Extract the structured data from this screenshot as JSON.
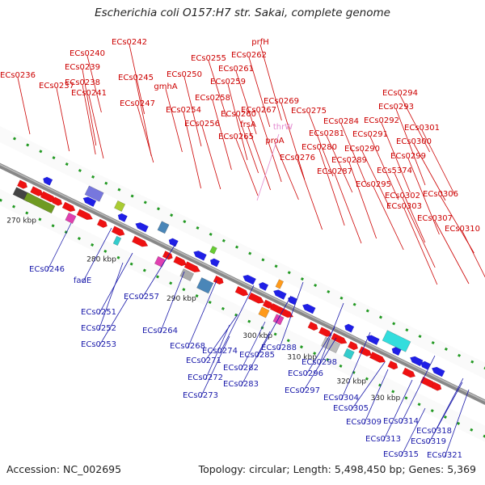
{
  "title": "Escherichia coli O157:H7 str. Sakai, complete genome",
  "footer": {
    "accession": "Accession: NC_002695",
    "summary": "Topology: circular; Length: 5,498,450 bp; Genes: 5,369"
  },
  "colors": {
    "forward_label": "#cc0000",
    "reverse_label": "#1a1aaa",
    "rna_label": "#e38ad0",
    "forward_gene": "#ee1111",
    "reverse_gene": "#1f1fe6",
    "backbone": "#888888",
    "tick": "#229922"
  },
  "scale_labels": [
    "270 kbp",
    "280 kbp",
    "290 kbp",
    "300 kbp",
    "310 kbp",
    "320 kbp",
    "330 kbp"
  ],
  "forward_labels": [
    "ECs0236",
    "ECs0237",
    "ECs0238",
    "ECs0239",
    "ECs0240",
    "ECs0241",
    "ECs0242",
    "ECs0245",
    "ECs0247",
    "gmhA",
    "ECs0250",
    "ECs0254",
    "ECs0255",
    "ECs0256",
    "ECs0258",
    "ECs0259",
    "ECs0260",
    "ECs0261",
    "ECs0262",
    "prfH",
    "ECs0265",
    "frsA",
    "ECs0267",
    "ECs0269",
    "proA",
    "ECs0275",
    "ECs0276",
    "ECs0280",
    "ECs0281",
    "ECs0284",
    "ECs0287",
    "ECs0289",
    "ECs0290",
    "ECs0291",
    "ECs0292",
    "ECs0293",
    "ECs0294",
    "ECs0295",
    "ECs5374",
    "ECs0299",
    "ECs0300",
    "ECs0301",
    "ECs0302",
    "ECs0303",
    "ECs0306",
    "ECs0307",
    "ECs0310"
  ],
  "rna_labels": [
    "thrW"
  ],
  "reverse_labels": [
    "ECs0246",
    "fadE",
    "ECs0251",
    "ECs0252",
    "ECs0253",
    "ECs0257",
    "ECs0264",
    "ECs0268",
    "ECs0271",
    "ECs0272",
    "ECs0273",
    "ECs0274",
    "ECs0282",
    "ECs0283",
    "ECs0285",
    "ECs0288",
    "ECs0296",
    "ECs0297",
    "ECs0298",
    "ECs0304",
    "ECs0305",
    "ECs0309",
    "ECs0313",
    "ECs0314",
    "ECs0315",
    "ECs0318",
    "ECs0319",
    "ECs0321"
  ]
}
